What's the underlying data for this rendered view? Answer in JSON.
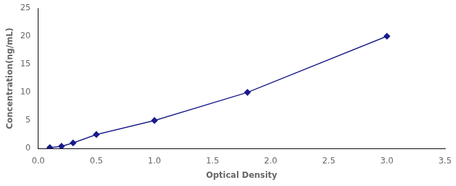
{
  "chart_data": {
    "type": "line",
    "x": [
      0.1,
      0.2,
      0.3,
      0.5,
      1.0,
      1.8,
      3.0
    ],
    "values": [
      0.16,
      0.4,
      1.0,
      2.5,
      5.0,
      10.0,
      20.0
    ],
    "color": "#1a1a8c",
    "marker": "diamond",
    "line_style": "solid",
    "xlabel": "Optical Density",
    "ylabel": "Concentration(ng/mL)",
    "xlim": [
      0,
      3.5
    ],
    "ylim": [
      0,
      25
    ],
    "xticks": [
      {
        "value": 0,
        "label": "0.0"
      },
      0.5,
      {
        "value": 1.0,
        "label": "1.0"
      },
      1.5,
      {
        "value": 2.0,
        "label": "2.0"
      },
      2.5,
      {
        "value": 3.0,
        "label": "3.0"
      },
      3.5
    ],
    "yticks": [
      0,
      5,
      10,
      15,
      20,
      25
    ],
    "grid": false
  }
}
